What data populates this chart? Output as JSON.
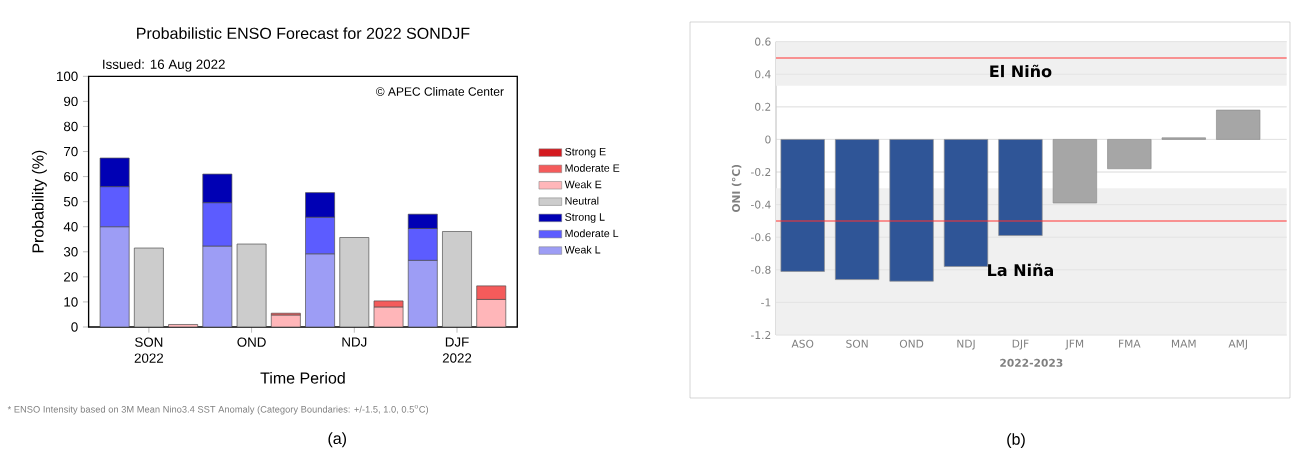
{
  "chart_data": [
    {
      "type": "bar",
      "title": "Probabilistic ENSO Forecast for 2022 SONDJF",
      "subtitle": "Issued: 16 Aug 2022",
      "xlabel": "Time Period",
      "ylabel": "Probability (%)",
      "categories": [
        null,
        "SON 2022",
        null,
        null,
        "OND",
        null,
        null,
        "NDJ",
        null,
        null,
        "DJF 2022",
        null
      ],
      "stacked": true,
      "series": [
        {
          "name": "Weak L",
          "color": "#9d9df5",
          "values": [
            40,
            null,
            null,
            32.3,
            null,
            null,
            29.2,
            null,
            null,
            26.6,
            null,
            null
          ]
        },
        {
          "name": "Moderate L",
          "color": "#5c5cff",
          "values": [
            16,
            null,
            null,
            17.3,
            null,
            null,
            14.6,
            null,
            null,
            12.7,
            null,
            null
          ]
        },
        {
          "name": "Strong L",
          "color": "#0000b4",
          "values": [
            11.4,
            null,
            null,
            11.4,
            null,
            null,
            9.8,
            null,
            null,
            5.7,
            null,
            null
          ]
        },
        {
          "name": "Neutral",
          "color": "#cccccc",
          "values": [
            null,
            31.5,
            null,
            null,
            33.1,
            null,
            null,
            35.7,
            null,
            null,
            38.1,
            null
          ]
        },
        {
          "name": "Weak E",
          "color": "#ffb6b9",
          "values": [
            null,
            null,
            1,
            null,
            null,
            4.8,
            null,
            null,
            8,
            null,
            null,
            11
          ]
        },
        {
          "name": "Moderate E",
          "color": "#f45b5b",
          "values": [
            null,
            null,
            null,
            null,
            null,
            0.7,
            null,
            null,
            2.4,
            null,
            null,
            5.4
          ]
        },
        {
          "name": "Strong E",
          "color": "#d41a1f",
          "values": [
            null,
            null,
            null,
            null,
            null,
            null,
            null,
            null,
            null,
            null,
            null,
            null
          ]
        }
      ],
      "ylim": [
        0,
        100
      ],
      "yticks": [
        0,
        10,
        20,
        30,
        40,
        50,
        60,
        70,
        80,
        90,
        100
      ],
      "legend": "right",
      "annotations": [
        "© APEC Climate Center",
        "* ENSO Intensity based on 3M Mean Nino3.4 SST Anomaly (Category Boundaries: +/-1.5, 1.0, 0.5$^{o}$C)",
        "(a)"
      ]
    },
    {
      "type": "bar",
      "xlabel": "2022-2023",
      "ylabel": "ONI (°C)",
      "categories": [
        "ASO",
        "SON",
        "OND",
        "NDJ",
        "DJF",
        "JFM",
        "FMA",
        "MAM",
        "AMJ"
      ],
      "values": [
        -0.81,
        -0.86,
        -0.87,
        -0.78,
        -0.59,
        -0.39,
        -0.18,
        0.01,
        0.18
      ],
      "colors": [
        "#2f5597",
        "#2f5597",
        "#2f5597",
        "#2f5597",
        "#2f5597",
        "#a6a6a6",
        "#a6a6a6",
        "#a6a6a6",
        "#a6a6a6"
      ],
      "ylim": [
        -1.2,
        0.6
      ],
      "yticks": [
        -1.2,
        -1,
        -0.8,
        -0.6,
        -0.4,
        -0.2,
        0,
        0.2,
        0.4,
        0.6
      ],
      "grid": "y",
      "ref_lines": [
        {
          "axis": "y",
          "value": 0.5,
          "color": "#ff3333"
        },
        {
          "axis": "y",
          "value": -0.5,
          "color": "#ff3333"
        }
      ],
      "bands": [
        {
          "axis": "y",
          "from": 0.33,
          "to": 0.6,
          "color": "#f0f0f0"
        },
        {
          "axis": "y",
          "from": -1.2,
          "to": -0.3,
          "color": "#f0f0f0"
        }
      ],
      "annotations": [
        "El Niño",
        "La Niña",
        "(b)"
      ]
    }
  ]
}
